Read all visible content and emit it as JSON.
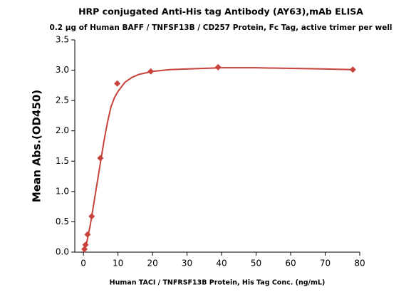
{
  "chart_data": {
    "type": "scatter",
    "title": "HRP conjugated Anti-His tag Antibody (AY63),mAb ELISA",
    "subtitle": "0.2 μg of Human BAFF / TNFSF13B / CD257 Protein, Fc Tag, active trimer per well",
    "x_label": "Human TACI / TNFRSF13B Protein, His Tag Conc. (ng/mL)",
    "y_label": "Mean Abs.(OD450)",
    "color": "#c8413a",
    "points": {
      "x": [
        0.3,
        0.6,
        1.2,
        2.4,
        4.9,
        9.8,
        19.5,
        39,
        78
      ],
      "y": [
        0.05,
        0.12,
        0.29,
        0.59,
        1.55,
        2.78,
        2.98,
        3.05,
        3.01
      ]
    },
    "curve": {
      "x": [
        0,
        0.5,
        1,
        2,
        3,
        4,
        5,
        6,
        7,
        8,
        9,
        10,
        12,
        14,
        16,
        20,
        25,
        30,
        40,
        50,
        60,
        70,
        78
      ],
      "y": [
        0,
        0.06,
        0.17,
        0.45,
        0.8,
        1.15,
        1.5,
        1.85,
        2.15,
        2.4,
        2.55,
        2.65,
        2.8,
        2.88,
        2.93,
        2.98,
        3.01,
        3.02,
        3.04,
        3.04,
        3.03,
        3.02,
        3.01
      ]
    },
    "xlim": [
      -2.5,
      80
    ],
    "xticks": [
      0,
      10,
      20,
      30,
      40,
      50,
      60,
      70,
      80
    ],
    "ylim": [
      0,
      3.5
    ],
    "yticks": [
      {
        "value": 0,
        "label": "0.0"
      },
      0.5,
      {
        "value": 1,
        "label": "1.0"
      },
      1.5,
      {
        "value": 2,
        "label": "2.0"
      },
      2.5,
      {
        "value": 3,
        "label": "3.0"
      },
      3.5
    ]
  }
}
